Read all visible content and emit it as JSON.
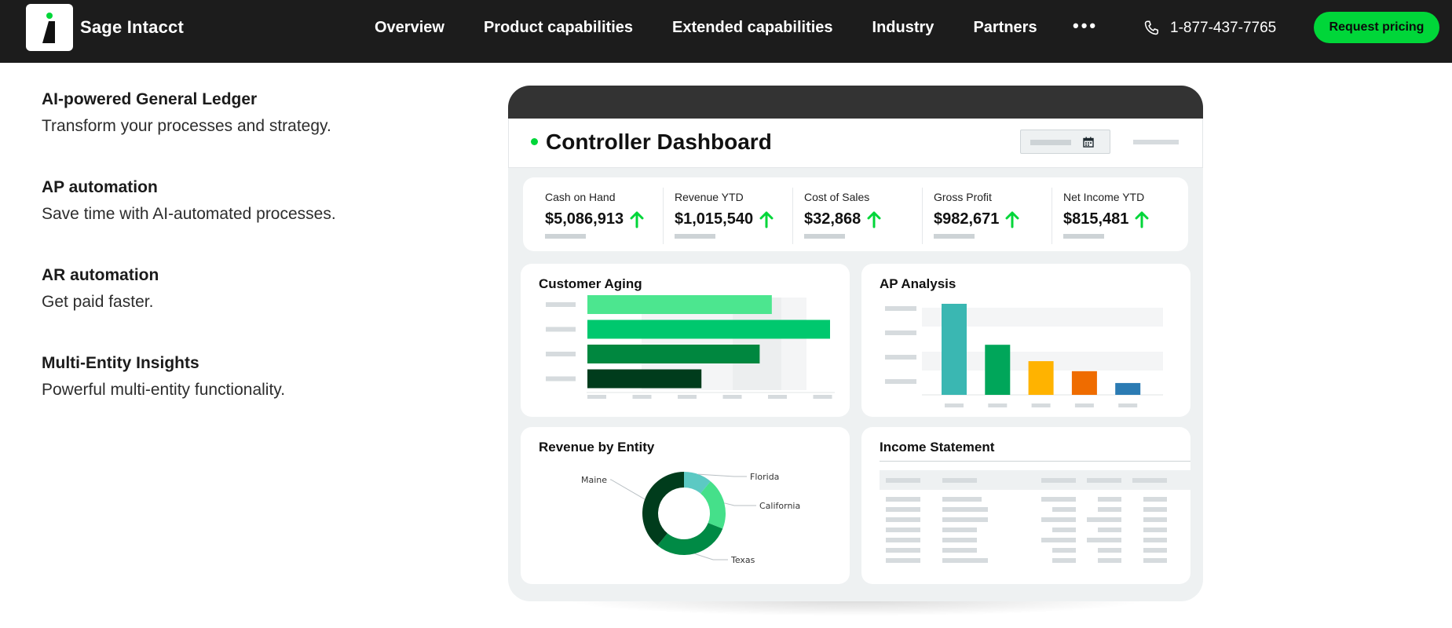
{
  "nav": {
    "brand": "Sage Intacct",
    "links": [
      "Overview",
      "Product capabilities",
      "Extended capabilities",
      "Industry",
      "Partners"
    ],
    "more": "•••",
    "phone": "1-877-437-7765",
    "cta": "Request pricing",
    "logo_icon": "sage-intacct-logo-icon",
    "phone_icon": "phone-icon",
    "accent_color": "#00d639",
    "bg_color": "#1c1c1c"
  },
  "features": [
    {
      "title": "AI-powered General Ledger",
      "desc": "Transform your processes and strategy."
    },
    {
      "title": "AP automation",
      "desc": "Save time with AI-automated processes."
    },
    {
      "title": "AR automation",
      "desc": "Get paid faster."
    },
    {
      "title": "Multi-Entity Insights",
      "desc": "Powerful multi-entity functionality."
    }
  ],
  "dashboard": {
    "title": "Controller Dashboard",
    "kpis": [
      {
        "label": "Cash on Hand",
        "value": "$5,086,913",
        "trend": "up"
      },
      {
        "label": "Revenue YTD",
        "value": "$1,015,540",
        "trend": "up"
      },
      {
        "label": "Cost of Sales",
        "value": "$32,868",
        "trend": "up"
      },
      {
        "label": "Gross Profit",
        "value": "$982,671",
        "trend": "up"
      },
      {
        "label": "Net Income YTD",
        "value": "$815,481",
        "trend": "up"
      }
    ],
    "customer_aging_title": "Customer Aging",
    "ap_analysis_title": "AP Analysis",
    "revenue_entity_title": "Revenue by Entity",
    "income_statement_title": "Income Statement"
  },
  "chart_data": [
    {
      "type": "bar",
      "orientation": "horizontal",
      "title": "Customer Aging",
      "values": [
        0.76,
        1.0,
        0.71,
        0.47
      ],
      "colors": [
        "#4ce68f",
        "#00c86e",
        "#00873f",
        "#003c1c"
      ]
    },
    {
      "type": "bar",
      "title": "AP Analysis",
      "values": [
        1.0,
        0.55,
        0.37,
        0.26,
        0.13
      ],
      "colors": [
        "#3ab7b2",
        "#00a65a",
        "#ffb300",
        "#ef6c00",
        "#2b7bb3"
      ]
    },
    {
      "type": "pie",
      "title": "Revenue by Entity",
      "categories": [
        "Florida",
        "California",
        "Texas",
        "Maine"
      ],
      "values": [
        0.11,
        0.2,
        0.3,
        0.39
      ],
      "colors": [
        "#5cc9c3",
        "#45e08a",
        "#008a45",
        "#003c1c"
      ]
    }
  ]
}
